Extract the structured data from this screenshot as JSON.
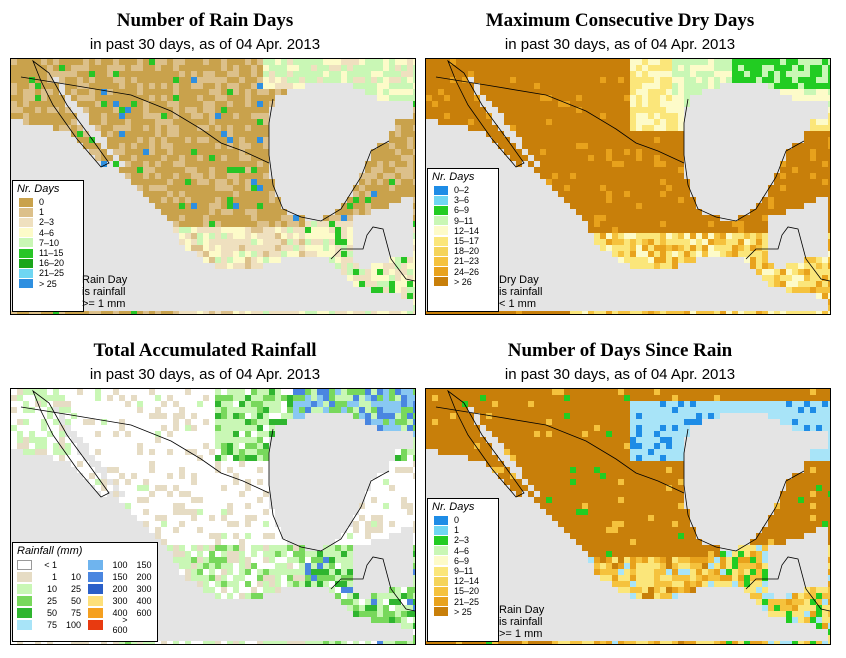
{
  "palettes": {
    "rain_days": {
      "land": "#c9a24c",
      "mid": "#dcc08a",
      "light": "#efe0bf",
      "paleyellow": "#fdfbc9",
      "paleg": "#c9f7b5",
      "green": "#27c526",
      "blue": "#2e8fe0",
      "cyan": "#6fd6f2",
      "water": "#e4e4e4"
    },
    "dry_days": {
      "brown": "#c87f0a",
      "orange": "#e8a21c",
      "gold": "#f5c23d",
      "yellow": "#fbe67a",
      "paleyellow": "#fdfbc9",
      "paleg": "#c9f7b5",
      "green": "#22cc22",
      "water": "#e4e4e4"
    },
    "rainfall": {
      "white": "#ffffff",
      "tan": "#e6dcc4",
      "lg": "#c9f7b5",
      "mg": "#78d85c",
      "dg": "#2fb52f",
      "blue": "#4a86e0",
      "lblue": "#89c8f2",
      "water": "#e4e4e4"
    },
    "since": {
      "brown": "#c87f0a",
      "orange": "#e8a21c",
      "gold": "#f5c23d",
      "yellow": "#fbe67a",
      "cyan": "#a8e4f8",
      "green": "#22cc22",
      "blue": "#1e8ce6",
      "water": "#e4e4e4"
    }
  },
  "panels": {
    "rain_days": {
      "title": "Number of Rain Days",
      "subtitle": "in past 30 days, as of  04 Apr. 2013",
      "legend_title": "Nr. Days",
      "legend": [
        {
          "label": "0",
          "color": "#c9a24c"
        },
        {
          "label": "1",
          "color": "#dcc08a"
        },
        {
          "label": "2–3",
          "color": "#efe0bf"
        },
        {
          "label": "4–6",
          "color": "#fdfbc9"
        },
        {
          "label": "7–10",
          "color": "#c9f7b5"
        },
        {
          "label": "11–15",
          "color": "#27c526"
        },
        {
          "label": "16–20",
          "color": "#1aa51a"
        },
        {
          "label": "21–25",
          "color": "#6fd6f2"
        },
        {
          "label": "> 25",
          "color": "#2e8fe0"
        }
      ],
      "note": [
        "Rain Day",
        "is rainfall",
        ">= 1 mm"
      ]
    },
    "dry_days": {
      "title": "Maximum Consecutive Dry Days",
      "subtitle": "in past 30 days, as of  04 Apr. 2013",
      "legend_title": "Nr. Days",
      "legend": [
        {
          "label": "0–2",
          "color": "#1e8ce6"
        },
        {
          "label": "3–6",
          "color": "#6fd6f2"
        },
        {
          "label": "6–9",
          "color": "#22cc22"
        },
        {
          "label": "9–11",
          "color": "#c9f7b5"
        },
        {
          "label": "12–14",
          "color": "#fdfbc9"
        },
        {
          "label": "15–17",
          "color": "#fbe67a"
        },
        {
          "label": "18–20",
          "color": "#f5d45a"
        },
        {
          "label": "21–23",
          "color": "#f5c23d"
        },
        {
          "label": "24–26",
          "color": "#e8a21c"
        },
        {
          "label": "> 26",
          "color": "#c87f0a"
        }
      ],
      "note": [
        "Dry Day",
        "is rainfall",
        "< 1 mm"
      ]
    },
    "rainfall": {
      "title": "Total Accumulated Rainfall",
      "subtitle": "in past 30 days, as of  04 Apr. 2013",
      "legend_title": "Rainfall (mm)",
      "legend_left": [
        {
          "a": "< 1",
          "b": "",
          "color": "#ffffff"
        },
        {
          "a": "1",
          "b": "10",
          "color": "#e6dcc4"
        },
        {
          "a": "10",
          "b": "25",
          "color": "#c9f7b5"
        },
        {
          "a": "25",
          "b": "50",
          "color": "#78d85c"
        },
        {
          "a": "50",
          "b": "75",
          "color": "#2fb52f"
        },
        {
          "a": "75",
          "b": "100",
          "color": "#a8e4f8"
        }
      ],
      "legend_right": [
        {
          "a": "100",
          "b": "150",
          "color": "#6fb4ee"
        },
        {
          "a": "150",
          "b": "200",
          "color": "#4a86e0"
        },
        {
          "a": "200",
          "b": "300",
          "color": "#2a5fc8"
        },
        {
          "a": "300",
          "b": "400",
          "color": "#fde07a"
        },
        {
          "a": "400",
          "b": "600",
          "color": "#f5a020"
        },
        {
          "a": "> 600",
          "b": "",
          "color": "#e83a10"
        }
      ]
    },
    "since": {
      "title": "Number of Days Since Rain",
      "subtitle": "in past 30 days, as of  04 Apr. 2013",
      "legend_title": "Nr. Days",
      "legend": [
        {
          "label": "0",
          "color": "#1e8ce6"
        },
        {
          "label": "1",
          "color": "#6fd6f2"
        },
        {
          "label": "2–3",
          "color": "#22cc22"
        },
        {
          "label": "4–6",
          "color": "#c9f7b5"
        },
        {
          "label": "6–9",
          "color": "#fdfbc9"
        },
        {
          "label": "9–11",
          "color": "#fbe67a"
        },
        {
          "label": "12–14",
          "color": "#f5d45a"
        },
        {
          "label": "15–20",
          "color": "#f5c23d"
        },
        {
          "label": "21–25",
          "color": "#e8a21c"
        },
        {
          "label": "> 25",
          "color": "#c87f0a"
        }
      ],
      "note": [
        "Rain Day",
        "is rainfall",
        ">= 1 mm"
      ]
    }
  }
}
